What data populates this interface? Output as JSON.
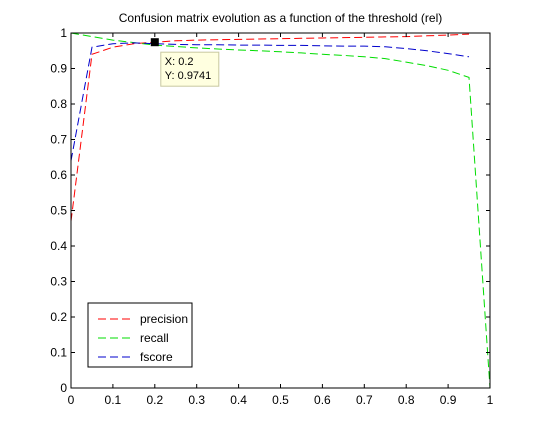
{
  "chart_data": {
    "type": "line",
    "title": "Confusion matrix evolution as a function of the threshold (rel)",
    "xlabel": "",
    "ylabel": "",
    "xlim": [
      0,
      1
    ],
    "ylim": [
      0,
      1
    ],
    "xticks": [
      "0",
      "0.1",
      "0.2",
      "0.3",
      "0.4",
      "0.5",
      "0.6",
      "0.7",
      "0.8",
      "0.9",
      "1"
    ],
    "yticks": [
      "0",
      "0.1",
      "0.2",
      "0.3",
      "0.4",
      "0.5",
      "0.6",
      "0.7",
      "0.8",
      "0.9",
      "1"
    ],
    "grid": false,
    "legend_position": "bottom-left",
    "series": [
      {
        "name": "precision",
        "color": "#ff0000",
        "style": "dashed",
        "x": [
          0,
          0.05,
          0.1,
          0.15,
          0.2,
          0.25,
          0.3,
          0.35,
          0.4,
          0.45,
          0.5,
          0.55,
          0.6,
          0.65,
          0.7,
          0.75,
          0.8,
          0.85,
          0.9,
          0.95
        ],
        "y": [
          0.47,
          0.94,
          0.96,
          0.97,
          0.974,
          0.978,
          0.98,
          0.981,
          0.982,
          0.983,
          0.984,
          0.985,
          0.986,
          0.987,
          0.988,
          0.989,
          0.99,
          0.992,
          0.994,
          0.997
        ]
      },
      {
        "name": "recall",
        "color": "#00dd00",
        "style": "dashed",
        "x": [
          0,
          0.05,
          0.1,
          0.15,
          0.2,
          0.25,
          0.3,
          0.35,
          0.4,
          0.45,
          0.5,
          0.55,
          0.6,
          0.65,
          0.7,
          0.75,
          0.8,
          0.85,
          0.9,
          0.95,
          1
        ],
        "y": [
          1.0,
          0.99,
          0.98,
          0.973,
          0.966,
          0.962,
          0.958,
          0.955,
          0.952,
          0.95,
          0.947,
          0.944,
          0.94,
          0.937,
          0.933,
          0.928,
          0.918,
          0.908,
          0.895,
          0.875,
          0
        ]
      },
      {
        "name": "fscore",
        "color": "#0000cc",
        "style": "dashed",
        "x": [
          0,
          0.05,
          0.1,
          0.15,
          0.2,
          0.25,
          0.3,
          0.35,
          0.4,
          0.45,
          0.5,
          0.55,
          0.6,
          0.65,
          0.7,
          0.75,
          0.8,
          0.85,
          0.9,
          0.95
        ],
        "y": [
          0.64,
          0.96,
          0.97,
          0.972,
          0.97,
          0.968,
          0.967,
          0.967,
          0.966,
          0.966,
          0.965,
          0.965,
          0.964,
          0.963,
          0.963,
          0.961,
          0.956,
          0.95,
          0.942,
          0.933
        ]
      }
    ],
    "datatip": {
      "x": 0.2,
      "y": 0.9741,
      "x_label": "X: 0.2",
      "y_label": "Y: 0.9741"
    }
  }
}
